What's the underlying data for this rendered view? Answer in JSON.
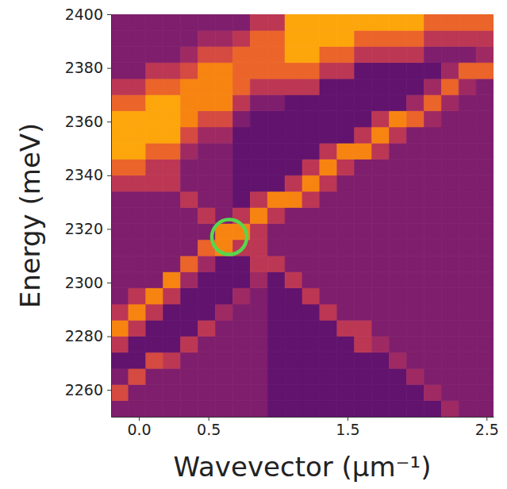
{
  "chart_data": {
    "type": "heatmap",
    "x_label": "Wavevector (μm⁻¹)",
    "y_label": "Energy (meV)",
    "color": "inferno",
    "xlim": [
      -0.2,
      2.55
    ],
    "ylim": [
      2250,
      2400
    ],
    "xticks": [
      {
        "value": 0,
        "label": "0.0"
      },
      0.5,
      1.5,
      2.5
    ],
    "yticks": [
      2260,
      2280,
      2300,
      2320,
      2340,
      2360,
      2380,
      2400
    ],
    "zlim": [
      0,
      9
    ],
    "x": [
      -0.1375,
      -0.0125,
      0.1125,
      0.2375,
      0.3625,
      0.4875,
      0.6125,
      0.7375,
      0.8625,
      0.9875,
      1.1125,
      1.2375,
      1.3625,
      1.4875,
      1.6125,
      1.7375,
      1.8625,
      1.9875,
      2.1125,
      2.2375,
      2.3625,
      2.4875
    ],
    "y": [
      2253,
      2259,
      2265,
      2271,
      2277,
      2283,
      2289,
      2295,
      2301,
      2307,
      2313,
      2319,
      2325,
      2331,
      2337,
      2343,
      2349,
      2355,
      2361,
      2367,
      2373,
      2379,
      2385,
      2391,
      2397
    ],
    "z": [
      [
        2,
        2,
        2,
        2,
        2,
        2,
        2,
        2,
        2,
        1,
        1,
        1,
        1,
        1,
        1,
        1,
        1,
        1,
        1,
        3,
        2,
        2
      ],
      [
        5,
        2,
        2,
        2,
        2,
        2,
        2,
        2,
        2,
        1,
        1,
        1,
        1,
        1,
        1,
        1,
        1,
        1,
        3,
        2,
        2,
        2
      ],
      [
        2,
        5,
        2,
        2,
        2,
        2,
        2,
        2,
        2,
        1,
        1,
        1,
        1,
        1,
        1,
        1,
        1,
        3,
        2,
        2,
        2,
        2
      ],
      [
        1,
        1,
        5,
        4,
        2,
        2,
        2,
        2,
        2,
        1,
        1,
        1,
        1,
        1,
        1,
        1,
        3,
        2,
        2,
        2,
        2,
        2
      ],
      [
        4,
        1,
        1,
        1,
        4,
        2,
        2,
        2,
        2,
        1,
        1,
        1,
        1,
        1,
        4,
        3,
        2,
        2,
        2,
        2,
        2,
        2
      ],
      [
        7,
        4,
        1,
        1,
        1,
        4,
        2,
        2,
        2,
        1,
        1,
        1,
        1,
        4,
        4,
        2,
        2,
        2,
        2,
        2,
        2,
        2
      ],
      [
        4,
        7,
        4,
        1,
        1,
        1,
        3,
        2,
        2,
        1,
        1,
        1,
        4,
        2,
        2,
        2,
        2,
        2,
        2,
        2,
        2,
        2
      ],
      [
        2,
        4,
        7,
        4,
        1,
        1,
        1,
        3,
        2,
        1,
        1,
        4,
        2,
        2,
        2,
        2,
        2,
        2,
        2,
        2,
        2,
        2
      ],
      [
        2,
        2,
        2,
        7,
        3,
        1,
        1,
        1,
        3,
        1,
        4,
        2,
        2,
        2,
        2,
        2,
        2,
        2,
        2,
        2,
        2,
        2
      ],
      [
        2,
        2,
        2,
        2,
        6,
        3,
        1,
        1,
        4,
        4,
        2,
        2,
        2,
        2,
        2,
        2,
        2,
        2,
        2,
        2,
        2,
        2
      ],
      [
        2,
        2,
        2,
        2,
        2,
        6,
        7,
        4,
        4,
        2,
        2,
        2,
        2,
        2,
        2,
        2,
        2,
        2,
        2,
        2,
        2,
        2
      ],
      [
        2,
        2,
        2,
        2,
        2,
        2,
        7,
        7,
        4,
        2,
        2,
        2,
        2,
        2,
        2,
        2,
        2,
        2,
        2,
        2,
        2,
        2
      ],
      [
        2,
        2,
        2,
        2,
        2,
        4,
        2,
        4,
        7,
        4,
        2,
        2,
        2,
        2,
        2,
        2,
        2,
        2,
        2,
        2,
        2,
        2
      ],
      [
        2,
        2,
        2,
        2,
        4,
        2,
        2,
        1,
        4,
        7,
        7,
        4,
        2,
        2,
        2,
        2,
        2,
        2,
        2,
        2,
        2,
        2
      ],
      [
        4,
        4,
        4,
        4,
        2,
        2,
        2,
        1,
        1,
        1,
        4,
        7,
        4,
        2,
        2,
        2,
        2,
        2,
        2,
        2,
        2,
        2
      ],
      [
        6,
        6,
        4,
        4,
        2,
        2,
        2,
        1,
        1,
        1,
        1,
        4,
        7,
        4,
        2,
        2,
        2,
        2,
        2,
        2,
        2,
        2
      ],
      [
        8,
        8,
        6,
        6,
        3,
        2,
        2,
        1,
        1,
        1,
        1,
        1,
        4,
        7,
        7,
        4,
        2,
        2,
        2,
        2,
        2,
        2
      ],
      [
        8,
        8,
        8,
        8,
        5,
        3,
        3,
        1,
        1,
        1,
        1,
        1,
        1,
        1,
        4,
        7,
        4,
        2,
        2,
        2,
        2,
        2
      ],
      [
        8,
        8,
        8,
        8,
        7,
        5,
        5,
        2,
        1,
        1,
        1,
        1,
        1,
        1,
        1,
        4,
        7,
        6,
        3,
        2,
        2,
        2
      ],
      [
        6,
        6,
        8,
        8,
        7,
        7,
        7,
        4,
        2,
        2,
        1,
        1,
        1,
        1,
        1,
        1,
        1,
        3,
        6,
        3,
        2,
        2
      ],
      [
        4,
        4,
        6,
        6,
        7,
        7,
        7,
        6,
        4,
        4,
        4,
        4,
        1,
        1,
        1,
        1,
        1,
        1,
        3,
        6,
        3,
        2
      ],
      [
        2,
        2,
        4,
        4,
        5,
        7,
        7,
        6,
        6,
        6,
        6,
        6,
        4,
        4,
        1,
        1,
        1,
        1,
        1,
        3,
        6,
        6
      ],
      [
        2,
        2,
        2,
        2,
        3,
        5,
        5,
        6,
        6,
        6,
        8,
        8,
        6,
        6,
        4,
        4,
        4,
        4,
        2,
        2,
        2,
        3
      ],
      [
        2,
        2,
        2,
        2,
        2,
        3,
        3,
        4,
        6,
        6,
        8,
        8,
        8,
        8,
        6,
        6,
        6,
        6,
        4,
        4,
        4,
        4
      ],
      [
        2,
        2,
        2,
        2,
        2,
        2,
        2,
        2,
        4,
        4,
        8,
        8,
        8,
        8,
        8,
        8,
        8,
        8,
        6,
        6,
        6,
        6
      ]
    ],
    "highlight": {
      "x": 0.65,
      "y": 2317
    }
  }
}
